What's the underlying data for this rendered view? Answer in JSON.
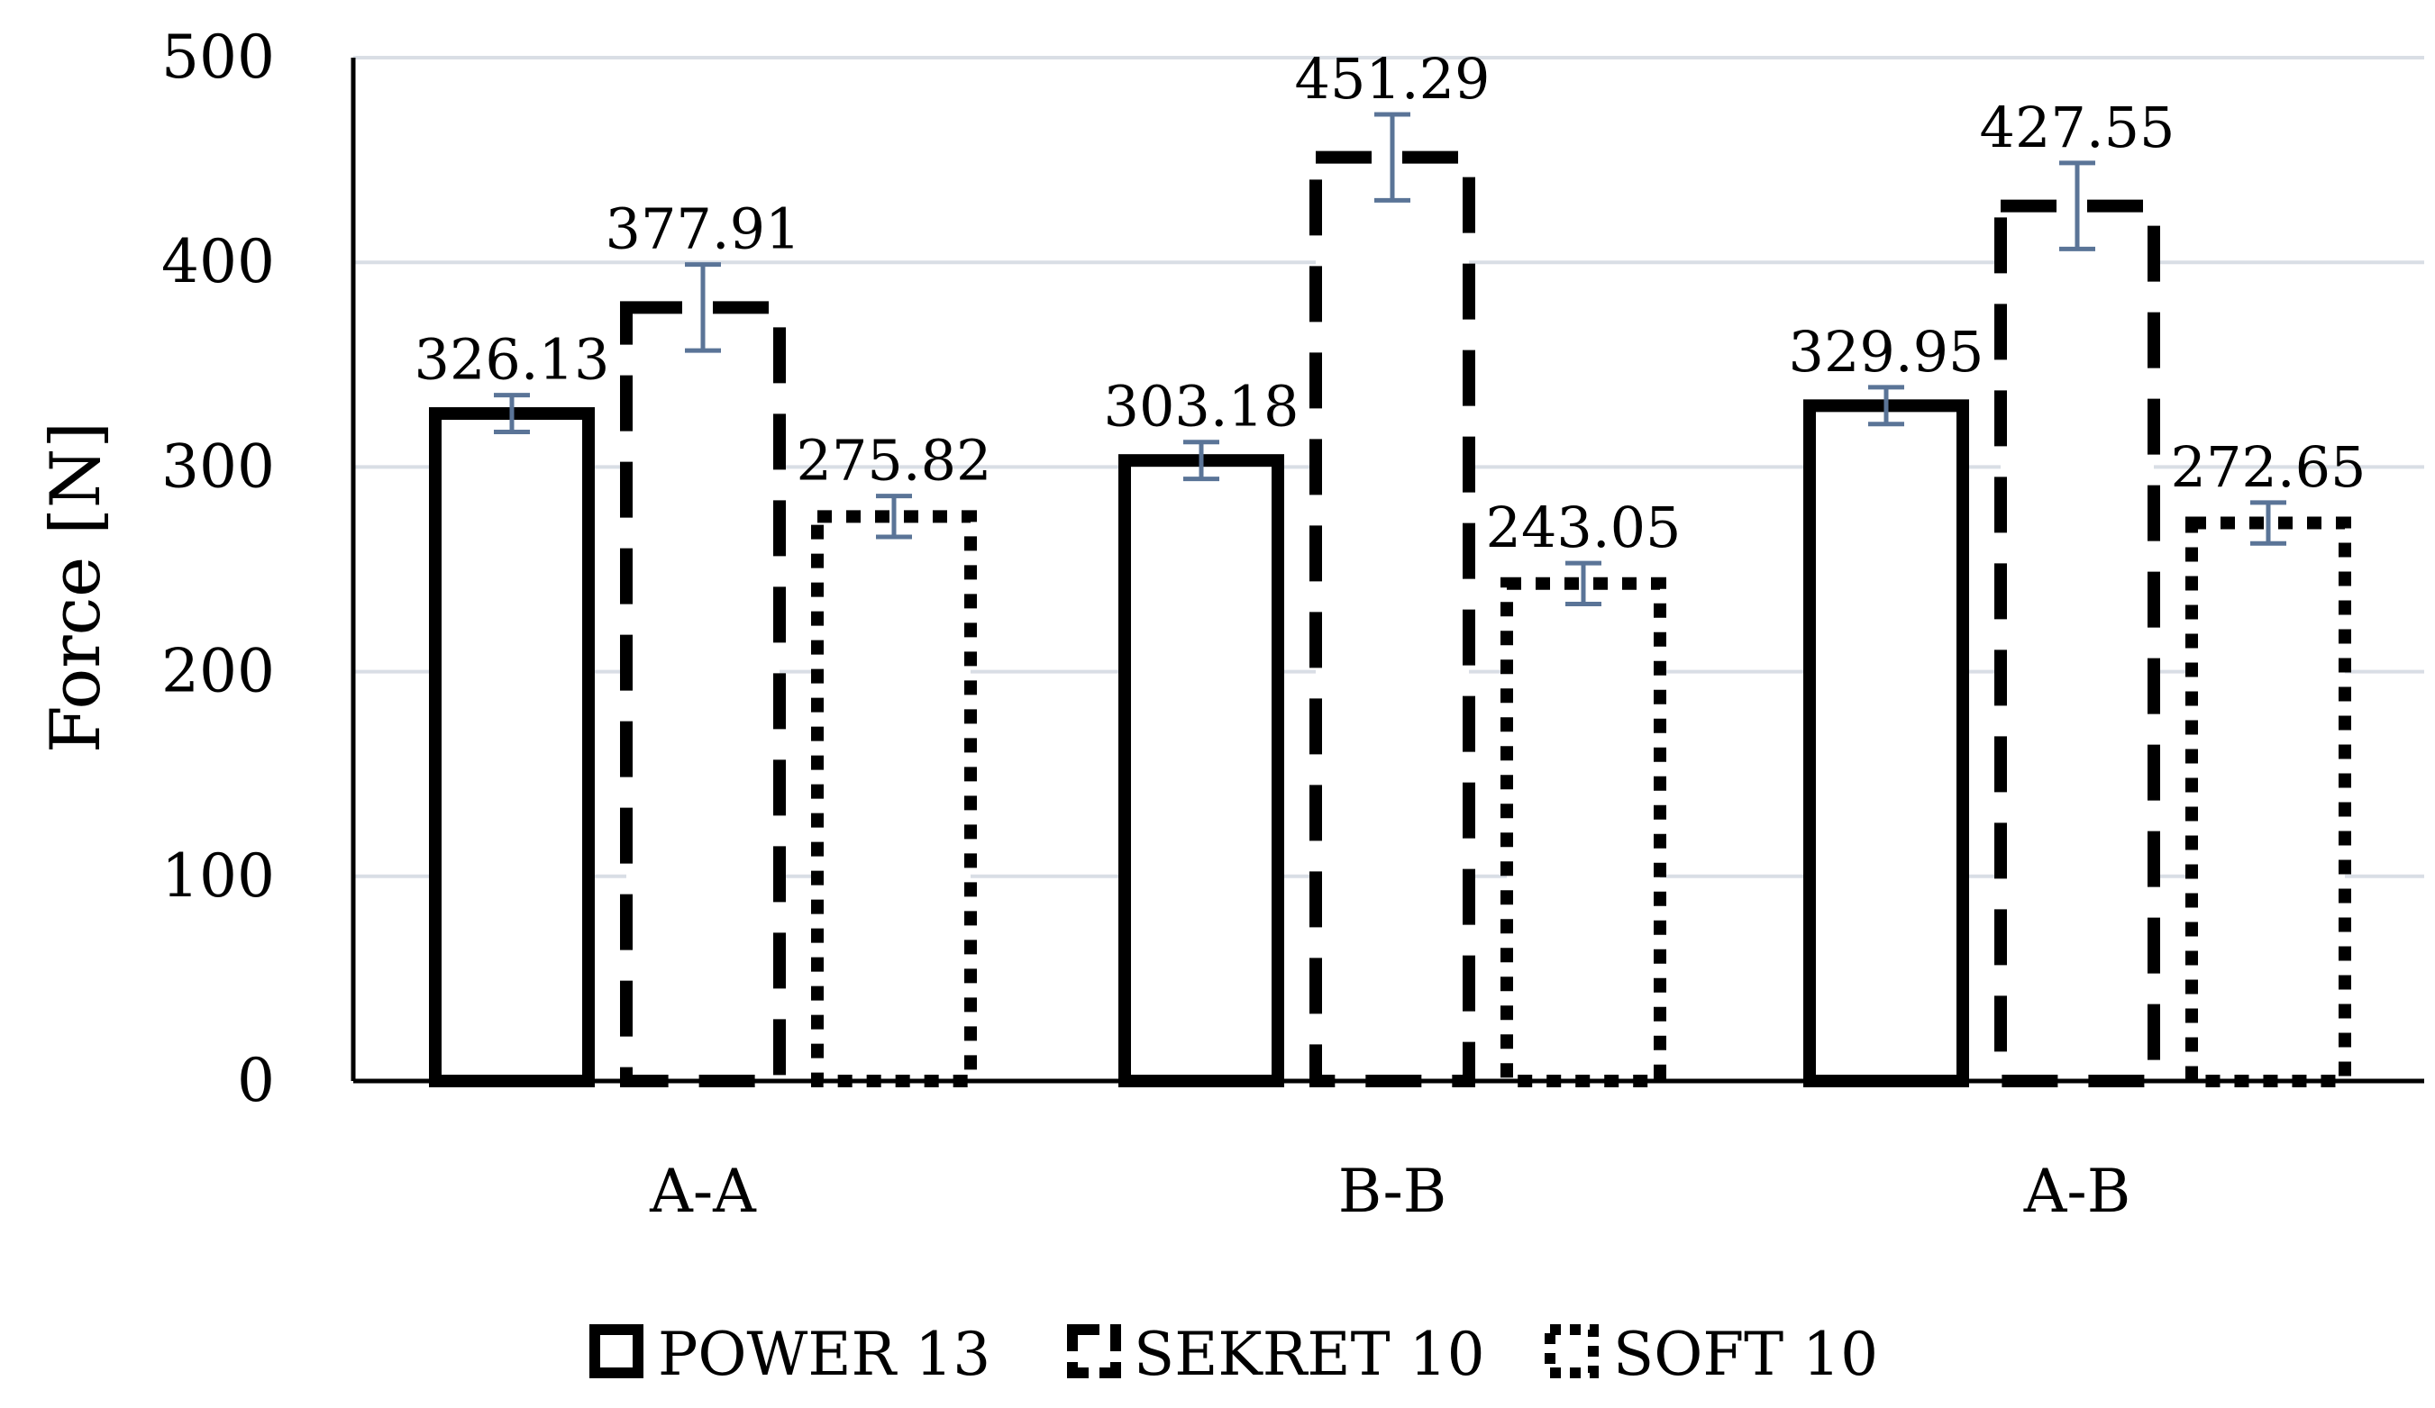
{
  "chart_data": {
    "type": "bar",
    "title": "",
    "xlabel": "",
    "ylabel": "Force [N]",
    "ylim": [
      0,
      500
    ],
    "yticks": [
      0,
      100,
      200,
      300,
      400,
      500
    ],
    "grid": true,
    "legend_position": "bottom",
    "categories": [
      "A-A",
      "B-B",
      "A-B"
    ],
    "series": [
      {
        "name": "POWER 13",
        "style": "solid",
        "values": [
          326.13,
          303.18,
          329.95
        ],
        "error": [
          9,
          9,
          9
        ]
      },
      {
        "name": "SEKRET 10",
        "style": "dashed",
        "values": [
          377.91,
          451.29,
          427.55
        ],
        "error": [
          21,
          21,
          21
        ]
      },
      {
        "name": "SOFT 10",
        "style": "dotted",
        "values": [
          275.82,
          243.05,
          272.65
        ],
        "error": [
          10,
          10,
          10
        ]
      }
    ],
    "data_labels": [
      [
        "326.13",
        "303.18",
        "329.95"
      ],
      [
        "377.91",
        "451.29",
        "427.55"
      ],
      [
        "275.82",
        "243.05",
        "272.65"
      ]
    ]
  },
  "colors": {
    "bar_stroke": "#000000",
    "error_bar": "#5a7497",
    "gridline": "#d9dee5",
    "axis": "#000000"
  }
}
